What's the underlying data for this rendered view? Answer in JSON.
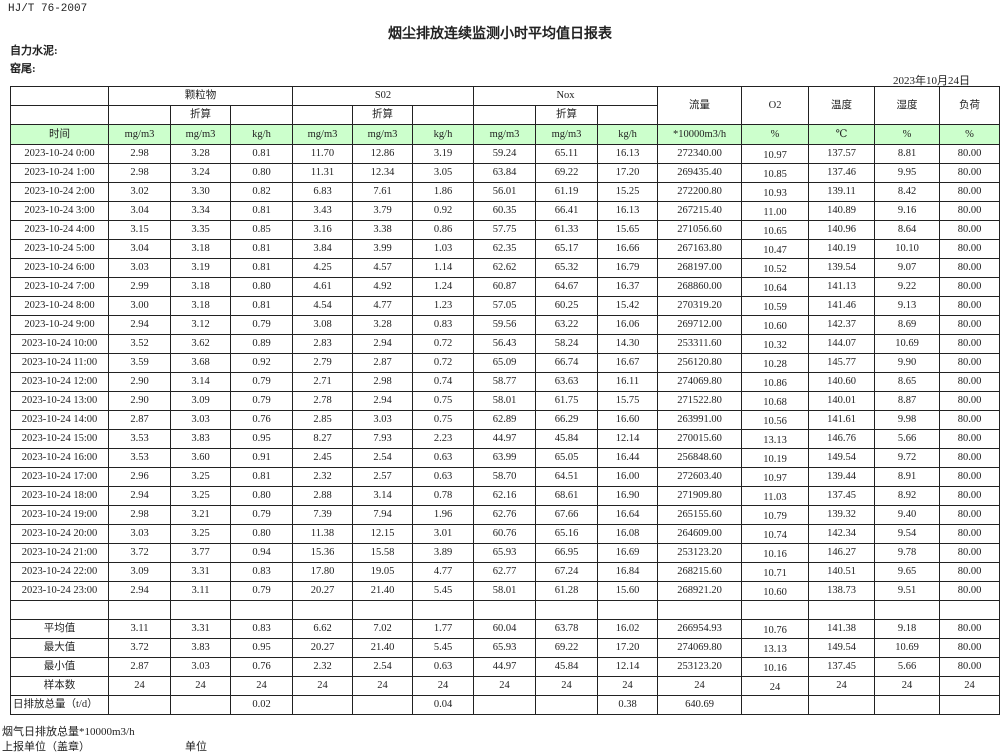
{
  "header": {
    "standard": "HJ/T  76-2007",
    "title": "烟尘排放连续监测小时平均值日报表",
    "company": "自力水泥:",
    "kiln": "窑尾:",
    "date": "2023年10月24日"
  },
  "table": {
    "groups": {
      "particulate": "颗粒物",
      "so2": "S02",
      "nox": "Nox",
      "flow": "流量",
      "o2": "O2",
      "temperature": "温度",
      "humidity": "湿度",
      "load": "负荷"
    },
    "converted_label": "折算",
    "units": [
      "时间",
      "mg/m3",
      "mg/m3",
      "kg/h",
      "mg/m3",
      "mg/m3",
      "kg/h",
      "mg/m3",
      "mg/m3",
      "kg/h",
      "*10000m3/h",
      "%",
      "℃",
      "%",
      "%"
    ],
    "rows": [
      [
        "2023-10-24 0:00",
        "2.98",
        "3.28",
        "0.81",
        "11.70",
        "12.86",
        "3.19",
        "59.24",
        "65.11",
        "16.13",
        "272340.00",
        "10.97",
        "137.57",
        "8.81",
        "80.00"
      ],
      [
        "2023-10-24 1:00",
        "2.98",
        "3.24",
        "0.80",
        "11.31",
        "12.34",
        "3.05",
        "63.84",
        "69.22",
        "17.20",
        "269435.40",
        "10.85",
        "137.46",
        "9.95",
        "80.00"
      ],
      [
        "2023-10-24 2:00",
        "3.02",
        "3.30",
        "0.82",
        "6.83",
        "7.61",
        "1.86",
        "56.01",
        "61.19",
        "15.25",
        "272200.80",
        "10.93",
        "139.11",
        "8.42",
        "80.00"
      ],
      [
        "2023-10-24 3:00",
        "3.04",
        "3.34",
        "0.81",
        "3.43",
        "3.79",
        "0.92",
        "60.35",
        "66.41",
        "16.13",
        "267215.40",
        "11.00",
        "140.89",
        "9.16",
        "80.00"
      ],
      [
        "2023-10-24 4:00",
        "3.15",
        "3.35",
        "0.85",
        "3.16",
        "3.38",
        "0.86",
        "57.75",
        "61.33",
        "15.65",
        "271056.60",
        "10.65",
        "140.96",
        "8.64",
        "80.00"
      ],
      [
        "2023-10-24 5:00",
        "3.04",
        "3.18",
        "0.81",
        "3.84",
        "3.99",
        "1.03",
        "62.35",
        "65.17",
        "16.66",
        "267163.80",
        "10.47",
        "140.19",
        "10.10",
        "80.00"
      ],
      [
        "2023-10-24 6:00",
        "3.03",
        "3.19",
        "0.81",
        "4.25",
        "4.57",
        "1.14",
        "62.62",
        "65.32",
        "16.79",
        "268197.00",
        "10.52",
        "139.54",
        "9.07",
        "80.00"
      ],
      [
        "2023-10-24 7:00",
        "2.99",
        "3.18",
        "0.80",
        "4.61",
        "4.92",
        "1.24",
        "60.87",
        "64.67",
        "16.37",
        "268860.00",
        "10.64",
        "141.13",
        "9.22",
        "80.00"
      ],
      [
        "2023-10-24 8:00",
        "3.00",
        "3.18",
        "0.81",
        "4.54",
        "4.77",
        "1.23",
        "57.05",
        "60.25",
        "15.42",
        "270319.20",
        "10.59",
        "141.46",
        "9.13",
        "80.00"
      ],
      [
        "2023-10-24 9:00",
        "2.94",
        "3.12",
        "0.79",
        "3.08",
        "3.28",
        "0.83",
        "59.56",
        "63.22",
        "16.06",
        "269712.00",
        "10.60",
        "142.37",
        "8.69",
        "80.00"
      ],
      [
        "2023-10-24 10:00",
        "3.52",
        "3.62",
        "0.89",
        "2.83",
        "2.94",
        "0.72",
        "56.43",
        "58.24",
        "14.30",
        "253311.60",
        "10.32",
        "144.07",
        "10.69",
        "80.00"
      ],
      [
        "2023-10-24 11:00",
        "3.59",
        "3.68",
        "0.92",
        "2.79",
        "2.87",
        "0.72",
        "65.09",
        "66.74",
        "16.67",
        "256120.80",
        "10.28",
        "145.77",
        "9.90",
        "80.00"
      ],
      [
        "2023-10-24 12:00",
        "2.90",
        "3.14",
        "0.79",
        "2.71",
        "2.98",
        "0.74",
        "58.77",
        "63.63",
        "16.11",
        "274069.80",
        "10.86",
        "140.60",
        "8.65",
        "80.00"
      ],
      [
        "2023-10-24 13:00",
        "2.90",
        "3.09",
        "0.79",
        "2.78",
        "2.94",
        "0.75",
        "58.01",
        "61.75",
        "15.75",
        "271522.80",
        "10.68",
        "140.01",
        "8.87",
        "80.00"
      ],
      [
        "2023-10-24 14:00",
        "2.87",
        "3.03",
        "0.76",
        "2.85",
        "3.03",
        "0.75",
        "62.89",
        "66.29",
        "16.60",
        "263991.00",
        "10.56",
        "141.61",
        "9.98",
        "80.00"
      ],
      [
        "2023-10-24 15:00",
        "3.53",
        "3.83",
        "0.95",
        "8.27",
        "7.93",
        "2.23",
        "44.97",
        "45.84",
        "12.14",
        "270015.60",
        "13.13",
        "146.76",
        "5.66",
        "80.00"
      ],
      [
        "2023-10-24 16:00",
        "3.53",
        "3.60",
        "0.91",
        "2.45",
        "2.54",
        "0.63",
        "63.99",
        "65.05",
        "16.44",
        "256848.60",
        "10.19",
        "149.54",
        "9.72",
        "80.00"
      ],
      [
        "2023-10-24 17:00",
        "2.96",
        "3.25",
        "0.81",
        "2.32",
        "2.57",
        "0.63",
        "58.70",
        "64.51",
        "16.00",
        "272603.40",
        "10.97",
        "139.44",
        "8.91",
        "80.00"
      ],
      [
        "2023-10-24 18:00",
        "2.94",
        "3.25",
        "0.80",
        "2.88",
        "3.14",
        "0.78",
        "62.16",
        "68.61",
        "16.90",
        "271909.80",
        "11.03",
        "137.45",
        "8.92",
        "80.00"
      ],
      [
        "2023-10-24 19:00",
        "2.98",
        "3.21",
        "0.79",
        "7.39",
        "7.94",
        "1.96",
        "62.76",
        "67.66",
        "16.64",
        "265155.60",
        "10.79",
        "139.32",
        "9.40",
        "80.00"
      ],
      [
        "2023-10-24 20:00",
        "3.03",
        "3.25",
        "0.80",
        "11.38",
        "12.15",
        "3.01",
        "60.76",
        "65.16",
        "16.08",
        "264609.00",
        "10.74",
        "142.34",
        "9.54",
        "80.00"
      ],
      [
        "2023-10-24 21:00",
        "3.72",
        "3.77",
        "0.94",
        "15.36",
        "15.58",
        "3.89",
        "65.93",
        "66.95",
        "16.69",
        "253123.20",
        "10.16",
        "146.27",
        "9.78",
        "80.00"
      ],
      [
        "2023-10-24 22:00",
        "3.09",
        "3.31",
        "0.83",
        "17.80",
        "19.05",
        "4.77",
        "62.77",
        "67.24",
        "16.84",
        "268215.60",
        "10.71",
        "140.51",
        "9.65",
        "80.00"
      ],
      [
        "2023-10-24 23:00",
        "2.94",
        "3.11",
        "0.79",
        "20.27",
        "21.40",
        "5.45",
        "58.01",
        "61.28",
        "15.60",
        "268921.20",
        "10.60",
        "138.73",
        "9.51",
        "80.00"
      ]
    ],
    "summary": [
      [
        "平均值",
        "3.11",
        "3.31",
        "0.83",
        "6.62",
        "7.02",
        "1.77",
        "60.04",
        "63.78",
        "16.02",
        "266954.93",
        "10.76",
        "141.38",
        "9.18",
        "80.00"
      ],
      [
        "最大值",
        "3.72",
        "3.83",
        "0.95",
        "20.27",
        "21.40",
        "5.45",
        "65.93",
        "69.22",
        "17.20",
        "274069.80",
        "13.13",
        "149.54",
        "10.69",
        "80.00"
      ],
      [
        "最小值",
        "2.87",
        "3.03",
        "0.76",
        "2.32",
        "2.54",
        "0.63",
        "44.97",
        "45.84",
        "12.14",
        "253123.20",
        "10.16",
        "137.45",
        "5.66",
        "80.00"
      ],
      [
        "样本数",
        "24",
        "24",
        "24",
        "24",
        "24",
        "24",
        "24",
        "24",
        "24",
        "24",
        "24",
        "24",
        "24",
        "24"
      ],
      [
        "日排放总量（t/d）",
        "",
        "",
        "0.02",
        "",
        "",
        "0.04",
        "",
        "",
        "0.38",
        "640.69",
        "",
        "",
        "",
        ""
      ]
    ]
  },
  "footer": {
    "flue_gas_note": "烟气日排放总量*10000m3/h",
    "reporting_unit": "上报单位（盖章）",
    "unit": "单位"
  }
}
